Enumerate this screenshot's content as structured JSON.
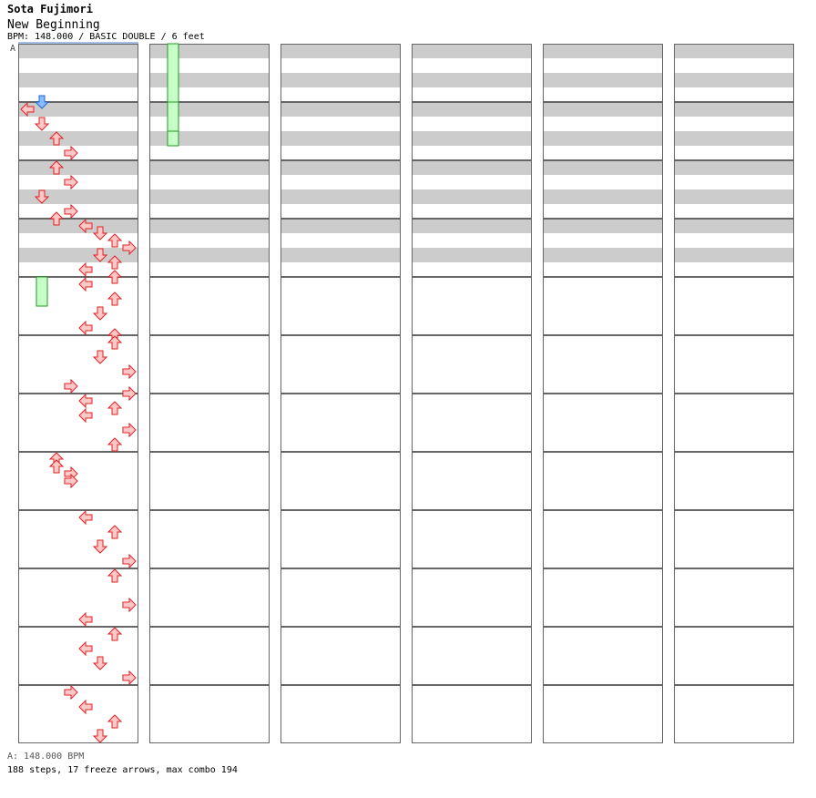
{
  "header": {
    "artist": "Sota Fujimori",
    "title": "New Beginning",
    "info": "BPM: 148.000 / BASIC DOUBLE / 6 feet",
    "bpm_marker": "A"
  },
  "footer": {
    "bpm_line": "A: 148.000 BPM",
    "stats": "188 steps, 17 freeze arrows, max combo 194"
  },
  "colors": {
    "stripe_light": "#ffffff",
    "stripe_dark": "#cccccc",
    "arrow_fill": "#ffc8c8",
    "arrow_stroke": "#dd2222",
    "freeze_fill": "#c8ffc8",
    "freeze_stroke": "#229922",
    "start_arrow_fill": "#88bbff",
    "start_arrow_stroke": "#2266cc"
  },
  "chart_data": {
    "type": "step-chart",
    "columns": 6,
    "measures_per_column": 12,
    "lanes": 8,
    "lane_directions": [
      "left",
      "down",
      "up",
      "right",
      "left",
      "down",
      "up",
      "right"
    ],
    "note_format": "[measure, beat (quarter notes, 0-4), lane index 0-7]",
    "notes": [
      [
        0,
        3.5,
        1
      ],
      [
        1,
        0,
        0
      ],
      [
        1,
        1,
        1
      ],
      [
        1,
        2,
        2
      ],
      [
        1,
        3,
        3
      ],
      [
        2,
        0,
        2
      ],
      [
        2,
        1,
        3
      ],
      [
        2,
        2,
        1
      ],
      [
        2,
        3,
        3
      ],
      [
        2,
        3.5,
        2
      ],
      [
        3,
        0,
        4
      ],
      [
        3,
        0.5,
        5
      ],
      [
        3,
        1,
        6
      ],
      [
        3,
        1.5,
        7
      ],
      [
        3,
        2,
        5
      ],
      [
        3,
        2.5,
        6
      ],
      [
        3,
        3,
        4
      ],
      [
        3,
        3.5,
        6
      ],
      [
        4,
        0,
        4
      ],
      [
        4,
        1,
        6
      ],
      [
        4,
        2,
        5
      ],
      [
        4,
        3,
        4
      ],
      [
        4,
        3.5,
        6
      ],
      [
        5,
        0,
        6
      ],
      [
        5,
        1,
        5
      ],
      [
        5,
        2,
        7
      ],
      [
        5,
        3,
        3
      ],
      [
        5,
        3.5,
        7
      ],
      [
        6,
        0,
        4
      ],
      [
        6,
        0.5,
        6
      ],
      [
        6,
        1,
        4
      ],
      [
        6,
        2,
        7
      ],
      [
        6,
        3,
        6
      ],
      [
        7,
        0,
        2
      ],
      [
        7,
        0.5,
        2
      ],
      [
        7,
        1,
        3
      ],
      [
        7,
        1.5,
        3
      ],
      [
        8,
        0,
        4
      ],
      [
        8,
        1,
        6
      ],
      [
        8,
        2,
        5
      ],
      [
        8,
        3,
        7
      ],
      [
        9,
        0,
        6
      ],
      [
        9,
        2,
        7
      ],
      [
        9,
        3,
        4
      ],
      [
        10,
        0,
        6
      ],
      [
        10,
        1,
        4
      ],
      [
        10,
        2,
        5
      ],
      [
        10,
        3,
        7
      ],
      [
        11,
        0,
        3
      ],
      [
        11,
        1,
        4
      ],
      [
        11,
        2,
        6
      ],
      [
        11,
        3,
        5
      ]
    ],
    "freezes": [
      [
        4,
        0,
        1,
        4,
        2
      ],
      [
        12,
        0,
        1,
        13,
        3
      ],
      [
        13,
        0,
        1,
        13,
        2
      ]
    ]
  }
}
